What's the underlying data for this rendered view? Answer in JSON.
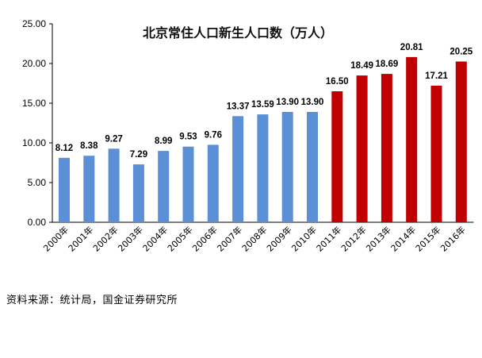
{
  "chart_data": {
    "type": "bar",
    "title": "北京常住人口新生人口数（万人）",
    "categories": [
      "2000年",
      "2001年",
      "2002年",
      "2003年",
      "2004年",
      "2005年",
      "2006年",
      "2007年",
      "2008年",
      "2009年",
      "2010年",
      "2011年",
      "2012年",
      "2013年",
      "2014年",
      "2015年",
      "2016年"
    ],
    "values": [
      8.12,
      8.38,
      9.27,
      7.29,
      8.99,
      9.53,
      9.76,
      13.37,
      13.59,
      13.9,
      13.9,
      16.5,
      18.49,
      18.69,
      20.81,
      17.21,
      20.25
    ],
    "value_labels": [
      "8.12",
      "8.38",
      "9.27",
      "7.29",
      "8.99",
      "9.53",
      "9.76",
      "13.37",
      "13.59",
      "13.90",
      "13.90",
      "16.50",
      "18.49",
      "18.69",
      "20.81",
      "17.21",
      "20.25"
    ],
    "yticks": [
      "0.00",
      "5.00",
      "10.00",
      "15.00",
      "20.00",
      "25.00"
    ],
    "ylim": [
      0,
      25
    ],
    "xlabel": "",
    "ylabel": "",
    "grid": false,
    "colors": {
      "blue": "#5B8FD6",
      "red": "#C00000"
    },
    "red_from_index": 11
  },
  "source": "资料来源：统计局，国金证券研究所"
}
